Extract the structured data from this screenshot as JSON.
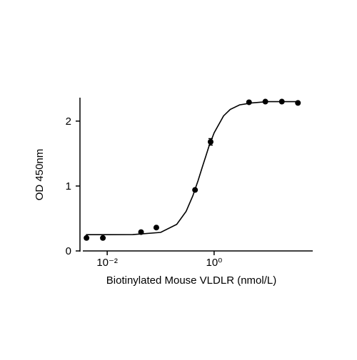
{
  "chart_data": {
    "type": "scatter",
    "x_label": "Biotinylated Mouse VLDLR (nmol/L)",
    "y_label": "OD 450nm",
    "x_scale": "log",
    "xlim": [
      0.003,
      70
    ],
    "xticks": [
      {
        "value": 0.01,
        "label": "10⁻²"
      },
      {
        "value": 1,
        "label": "10⁰"
      }
    ],
    "ylim": [
      0,
      2.35
    ],
    "yticks": [
      0,
      1,
      2
    ],
    "color": "#000000",
    "x": [
      0.0041,
      0.0083,
      0.043,
      0.083,
      0.44,
      0.86,
      4.5,
      9.1,
      18.5,
      37
    ],
    "values": [
      0.2,
      0.2,
      0.29,
      0.36,
      0.94,
      1.68,
      2.29,
      2.3,
      2.3,
      2.28
    ],
    "errors": [
      null,
      null,
      null,
      null,
      null,
      0.05,
      null,
      null,
      null,
      null
    ],
    "fit_curve": {
      "x": [
        0.004,
        0.01,
        0.03,
        0.1,
        0.2,
        0.3,
        0.4,
        0.5,
        0.6,
        0.7,
        0.8,
        1,
        1.5,
        2,
        3,
        5,
        10,
        20,
        40
      ],
      "y": [
        0.25,
        0.25,
        0.252,
        0.286,
        0.41,
        0.61,
        0.85,
        1.08,
        1.29,
        1.46,
        1.61,
        1.82,
        2.08,
        2.18,
        2.25,
        2.28,
        2.3,
        2.3,
        2.3
      ]
    }
  }
}
